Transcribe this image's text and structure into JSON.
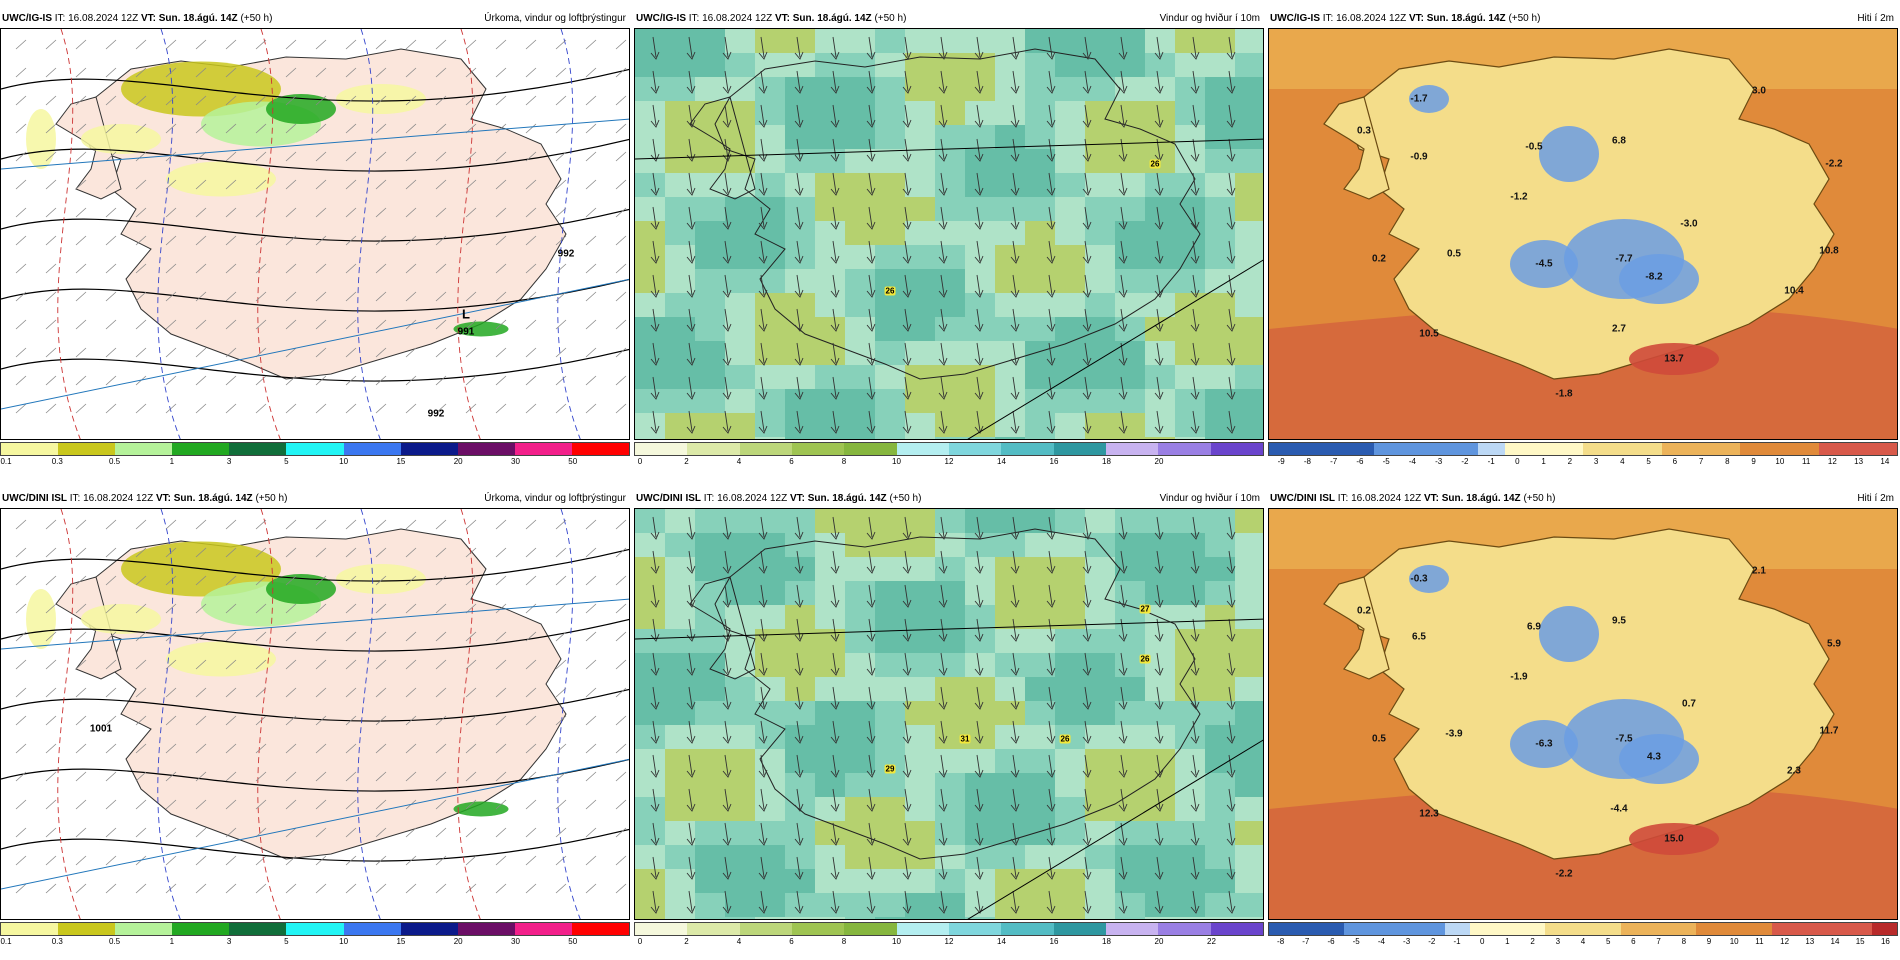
{
  "panels": [
    {
      "id": "p1",
      "model": "UWC/IG-IS",
      "it": "IT: 16.08.2024 12Z",
      "vt_label": "VT:",
      "vt": "Sun. 18.ágú. 14Z",
      "lead": "(+50 h)",
      "title": "Úrkoma, vindur og loftþrýstingur",
      "type": "precip",
      "legend_ticks": [
        "0.1",
        "0.3",
        "0.5",
        "1",
        "3",
        "5",
        "10",
        "15",
        "20",
        "30",
        "50"
      ],
      "legend_colors": [
        "#f6f7a0",
        "#c9c71d",
        "#b5f29a",
        "#22a821",
        "#116e3a",
        "#22f4f4",
        "#3b77f0",
        "#0b1a8a",
        "#6b0e66",
        "#f2208a",
        "#ff0000"
      ],
      "labels": [
        "L",
        "991",
        "992",
        "992"
      ]
    },
    {
      "id": "p2",
      "model": "UWC/IG-IS",
      "it": "IT: 16.08.2024 12Z",
      "vt_label": "VT:",
      "vt": "Sun. 18.ágú. 14Z",
      "lead": "(+50 h)",
      "title": "Vindur og hviður í 10m",
      "type": "wind",
      "legend_ticks": [
        "0",
        "2",
        "4",
        "6",
        "8",
        "10",
        "12",
        "14",
        "16",
        "18",
        "20"
      ],
      "legend_colors": [
        "#f5f8dc",
        "#dce9a8",
        "#bcd67a",
        "#9fc452",
        "#86b63e",
        "#b4eef0",
        "#7fd6dd",
        "#53bcc4",
        "#2e97a0",
        "#c8b3f0",
        "#9a7fe4",
        "#6a44cc"
      ],
      "gust_labels": [
        "26",
        "26"
      ]
    },
    {
      "id": "p3",
      "model": "UWC/IG-IS",
      "it": "IT: 16.08.2024 12Z",
      "vt_label": "VT:",
      "vt": "Sun. 18.ágú. 14Z",
      "lead": "(+50 h)",
      "title": "Hiti í 2m",
      "type": "temp",
      "legend_ticks": [
        "-9",
        "-8",
        "-7",
        "-6",
        "-5",
        "-4",
        "-3",
        "-2",
        "-1",
        "0",
        "1",
        "2",
        "3",
        "4",
        "5",
        "6",
        "7",
        "8",
        "9",
        "10",
        "11",
        "12",
        "13",
        "14"
      ],
      "temp_labels": [
        "-1.7",
        "3.0",
        "0.3",
        "-0.9",
        "-0.5",
        "6.8",
        "-2.2",
        "-1.2",
        "-3.0",
        "0.2",
        "0.5",
        "-4.5",
        "-7.7",
        "-8.2",
        "10.8",
        "10.4",
        "10.5",
        "2.7",
        "13.7",
        "-1.8"
      ]
    },
    {
      "id": "p4",
      "model": "UWC/DINI ISL",
      "it": "IT: 16.08.2024 12Z",
      "vt_label": "VT:",
      "vt": "Sun. 18.ágú. 14Z",
      "lead": "(+50 h)",
      "title": "Úrkoma, vindur og loftþrýstingur",
      "type": "precip",
      "legend_ticks": [
        "0.1",
        "0.3",
        "0.5",
        "1",
        "3",
        "5",
        "10",
        "15",
        "20",
        "30",
        "50"
      ],
      "legend_colors": [
        "#f6f7a0",
        "#c9c71d",
        "#b5f29a",
        "#22a821",
        "#116e3a",
        "#22f4f4",
        "#3b77f0",
        "#0b1a8a",
        "#6b0e66",
        "#f2208a",
        "#ff0000"
      ],
      "labels": [
        "1001"
      ]
    },
    {
      "id": "p5",
      "model": "UWC/DINI ISL",
      "it": "IT: 16.08.2024 12Z",
      "vt_label": "VT:",
      "vt": "Sun. 18.ágú. 14Z",
      "lead": "(+50 h)",
      "title": "Vindur og hviður í 10m",
      "type": "wind",
      "legend_ticks": [
        "0",
        "2",
        "4",
        "6",
        "8",
        "10",
        "12",
        "14",
        "16",
        "18",
        "20",
        "22"
      ],
      "legend_colors": [
        "#f5f8dc",
        "#dce9a8",
        "#bcd67a",
        "#9fc452",
        "#86b63e",
        "#b4eef0",
        "#7fd6dd",
        "#53bcc4",
        "#2e97a0",
        "#c8b3f0",
        "#9a7fe4",
        "#6a44cc"
      ],
      "gust_labels": [
        "27",
        "26",
        "31",
        "29",
        "26"
      ]
    },
    {
      "id": "p6",
      "model": "UWC/DINI ISL",
      "it": "IT: 16.08.2024 12Z",
      "vt_label": "VT:",
      "vt": "Sun. 18.ágú. 14Z",
      "lead": "(+50 h)",
      "title": "Hiti í 2m",
      "type": "temp",
      "legend_ticks": [
        "-8",
        "-7",
        "-6",
        "-5",
        "-4",
        "-3",
        "-2",
        "-1",
        "0",
        "1",
        "2",
        "3",
        "4",
        "5",
        "6",
        "7",
        "8",
        "9",
        "10",
        "11",
        "12",
        "13",
        "14",
        "15",
        "16"
      ],
      "temp_labels": [
        "-0.3",
        "2.1",
        "0.2",
        "6.5",
        "6.9",
        "9.5",
        "5.9",
        "-1.9",
        "0.7",
        "0.5",
        "-3.9",
        "-6.3",
        "-7.5",
        "4.3",
        "11.7",
        "2.3",
        "12.3",
        "-4.4",
        "15.0",
        "-2.2"
      ]
    }
  ],
  "colors": {
    "sea_temp": "#e08a3a",
    "land_temp": "#f0c060",
    "cold": "#4a7fd0",
    "iceland_precip": "#fbe6dc",
    "wind_sea": "#7fd6dd",
    "wind_land": "#9fc452"
  }
}
